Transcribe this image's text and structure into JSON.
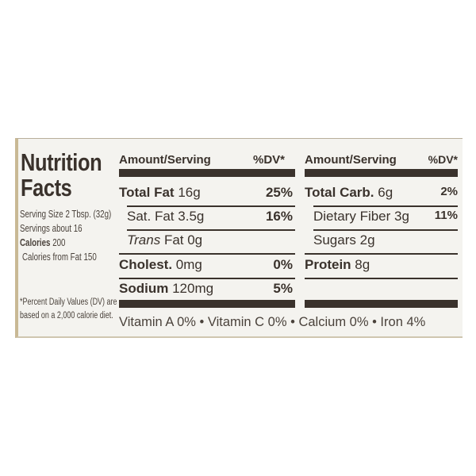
{
  "title_line1": "Nutrition",
  "title_line2": "Facts",
  "serving_size": "Serving Size 2 Tbsp. (32g)",
  "servings": "Servings about 16",
  "calories_label": "Calories",
  "calories_value": "200",
  "calories_from_fat": "Calories from Fat 150",
  "footnote_line1": "*Percent Daily Values (DV) are",
  "footnote_line2": "based on a 2,000 calorie diet.",
  "left_table": {
    "header_amount": "Amount/Serving",
    "header_dv": "%DV*",
    "rows": [
      {
        "name": "Total Fat",
        "amount": "16g",
        "dv": "25%"
      },
      {
        "name": "Sat. Fat",
        "amount": "3.5g",
        "dv": "16%"
      },
      {
        "name": "Trans",
        "amount": "Fat 0g",
        "dv": ""
      },
      {
        "name": "Cholest.",
        "amount": "0mg",
        "dv": "0%"
      },
      {
        "name": "Sodium",
        "amount": "120mg",
        "dv": "5%"
      }
    ]
  },
  "right_table": {
    "header_amount": "Amount/Serving",
    "header_dv": "%DV*",
    "rows": [
      {
        "name": "Total Carb.",
        "amount": "6g",
        "dv": "2%"
      },
      {
        "name": "Dietary Fiber",
        "amount": "3g",
        "dv": "11%"
      },
      {
        "name": "Sugars",
        "amount": "2g",
        "dv": ""
      },
      {
        "name": "Protein",
        "amount": "8g",
        "dv": ""
      }
    ]
  },
  "vitamins": "Vitamin A 0% • Vitamin C 0% • Calcium 0% • Iron 4%"
}
